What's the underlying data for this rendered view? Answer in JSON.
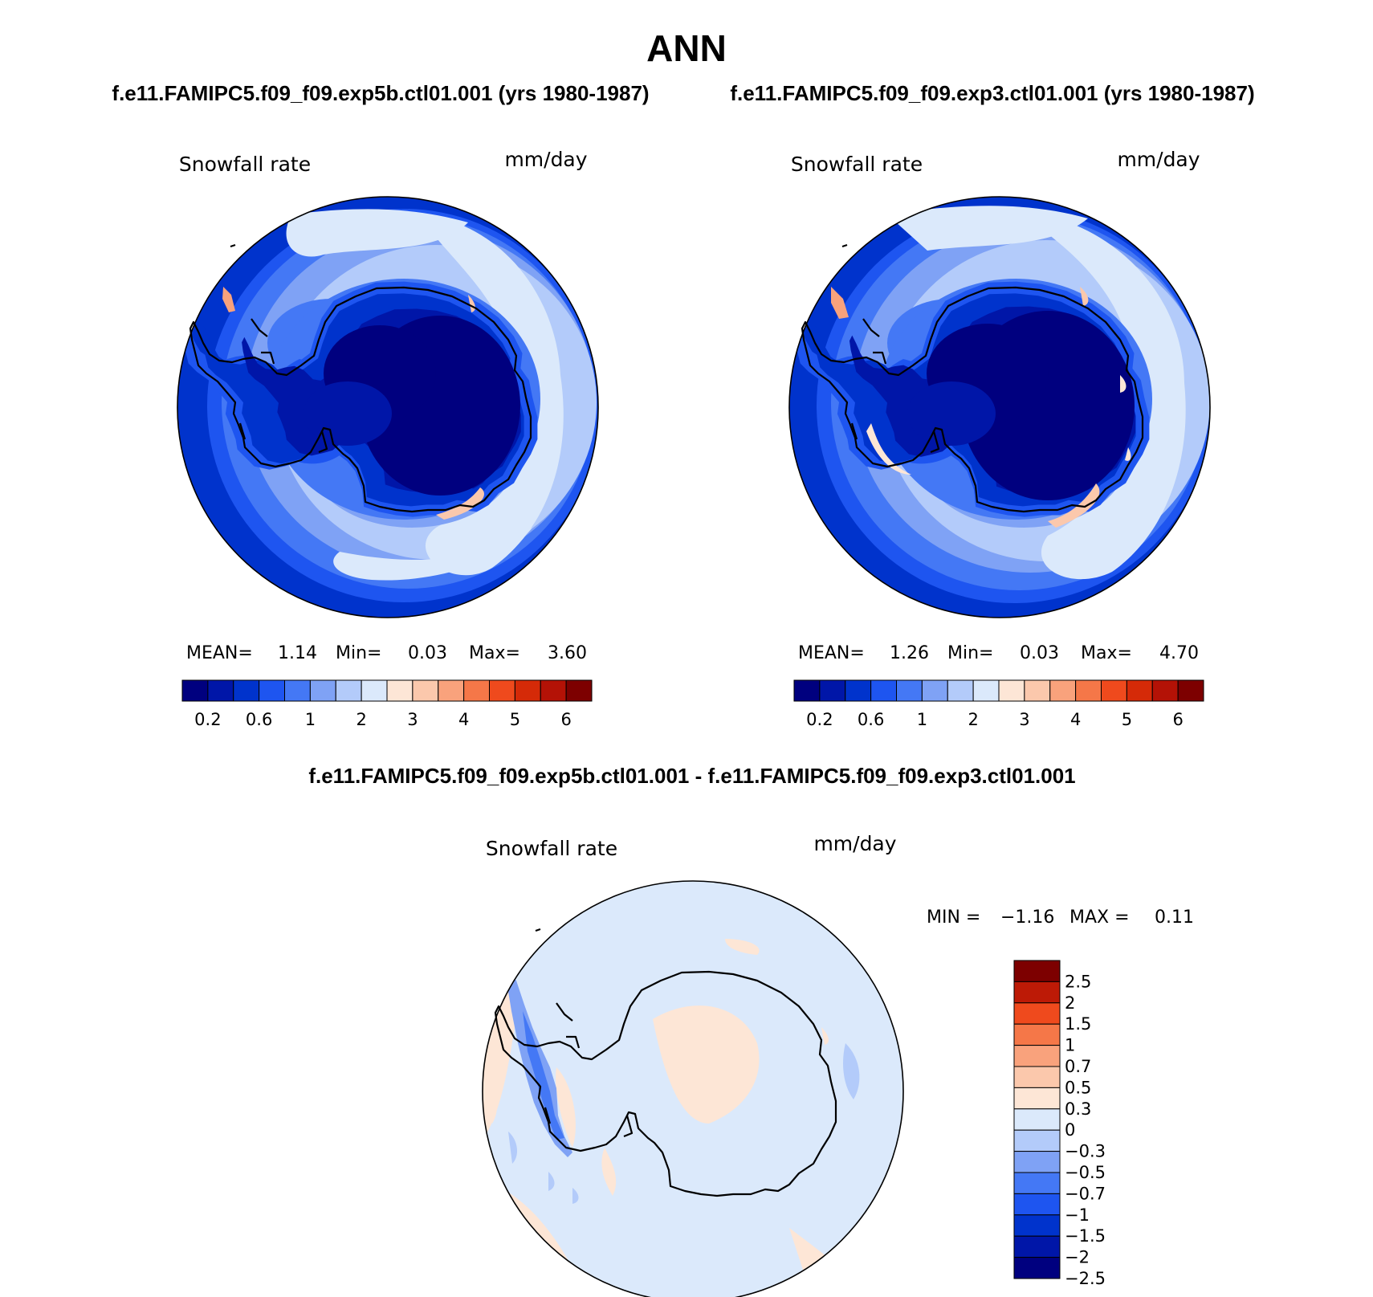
{
  "title": "ANN",
  "case_names": {
    "left": "f.e11.FAMIPC5.f09_f09.exp5b.ctl01.001 (yrs 1980-1987)",
    "right": "f.e11.FAMIPC5.f09_f09.exp3.ctl01.001 (yrs 1980-1987)",
    "diff": "f.e11.FAMIPC5.f09_f09.exp5b.ctl01.001 - f.e11.FAMIPC5.f09_f09.exp3.ctl01.001"
  },
  "panels": [
    {
      "variable": "Snowfall rate",
      "units": "mm/day",
      "stats": {
        "mean_label": "MEAN=",
        "mean": "1.14",
        "min_label": "Min=",
        "min": "0.03",
        "max_label": "Max=",
        "max": "3.60"
      }
    },
    {
      "variable": "Snowfall rate",
      "units": "mm/day",
      "stats": {
        "mean_label": "MEAN=",
        "mean": "1.26",
        "min_label": "Min=",
        "min": "0.03",
        "max_label": "Max=",
        "max": "4.70"
      }
    }
  ],
  "diff_panel": {
    "variable": "Snowfall rate",
    "units": "mm/day",
    "min_label": "MIN =",
    "min": "−1.16",
    "max_label": "MAX =",
    "max": "0.11"
  },
  "colorbar_main": {
    "colors": [
      "#00007f",
      "#0016a8",
      "#0033cc",
      "#1e55f0",
      "#4478f5",
      "#7fa2f5",
      "#b3cbfa",
      "#dbe9fb",
      "#fde6d6",
      "#fbc8ac",
      "#f9a27c",
      "#f57748",
      "#ef4a1d",
      "#d52a08",
      "#b41206",
      "#7d0000"
    ],
    "tick_labels": [
      "0.2",
      "0.6",
      "1",
      "2",
      "3",
      "4",
      "5",
      "6"
    ]
  },
  "colorbar_diff": {
    "colors_top_to_bottom": [
      "#7d0000",
      "#bd1a06",
      "#ef4a1d",
      "#f57748",
      "#f9a27c",
      "#fbc8ac",
      "#fde6d6",
      "#dbe9fb",
      "#b3cbfa",
      "#7fa2f5",
      "#4478f5",
      "#1e55f0",
      "#0033cc",
      "#0016a8",
      "#00007f"
    ],
    "tick_labels": [
      "2.5",
      "2",
      "1.5",
      "1",
      "0.7",
      "0.5",
      "0.3",
      "0",
      "−0.3",
      "−0.5",
      "−0.7",
      "−1",
      "−1.5",
      "−2",
      "−2.5"
    ]
  },
  "map_colors": {
    "ice_core": "#00007f",
    "deep": "#0016a8",
    "dark": "#0033cc",
    "mid": "#1e55f0",
    "medium": "#4478f5",
    "light": "#7fa2f5",
    "pale": "#b3cbfa",
    "very_pale": "#dbe9fb",
    "peach": "#fde6d6",
    "salmon": "#f9a27c"
  }
}
